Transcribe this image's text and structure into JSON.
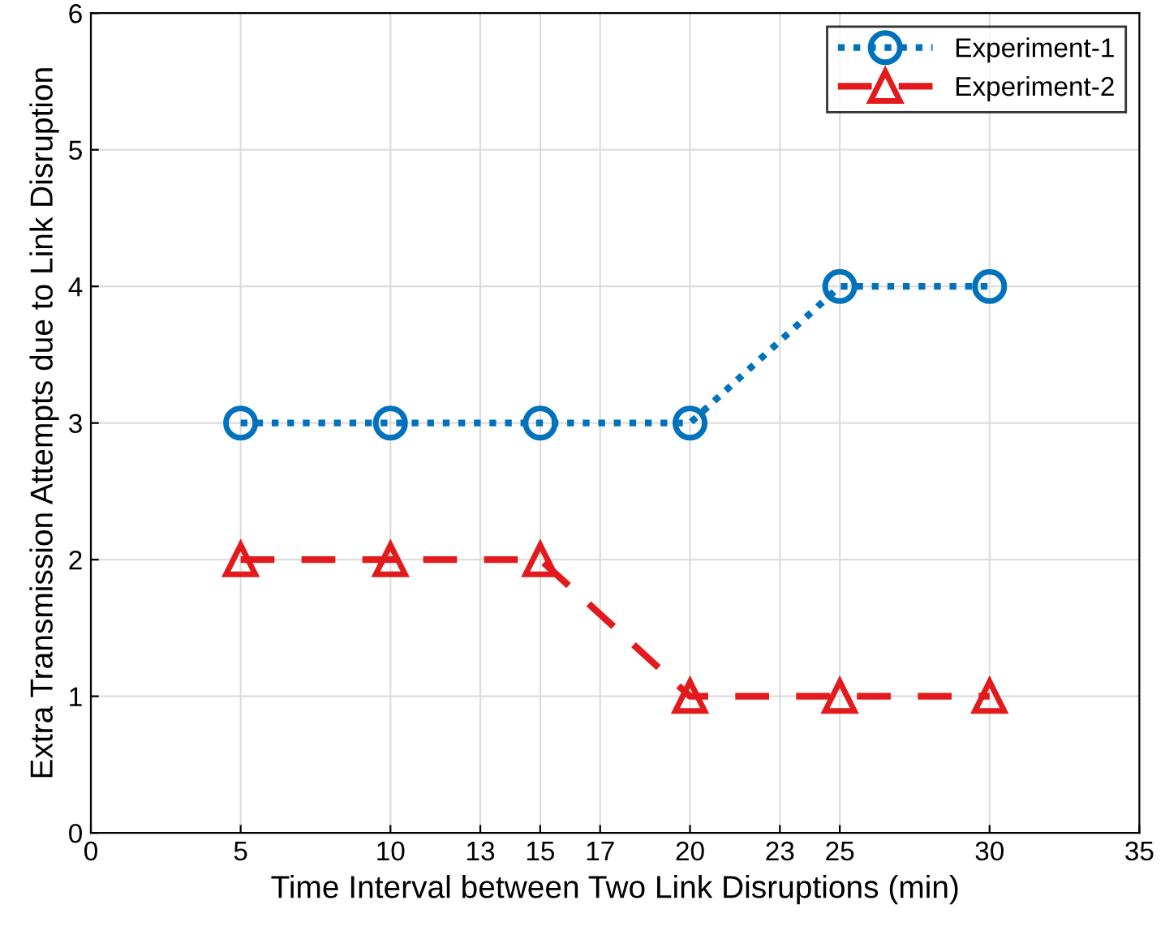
{
  "chart_data": {
    "type": "line",
    "xlabel": "Time Interval between Two Link Disruptions (min)",
    "ylabel": "Extra Transmission Attempts due to Link Disruption",
    "x": [
      5,
      10,
      15,
      20,
      25,
      30
    ],
    "series": [
      {
        "name": "Experiment-1",
        "color": "#0072bd",
        "values": [
          3,
          3,
          3,
          3,
          4,
          4
        ],
        "marker": "circle",
        "line_style": "dotted"
      },
      {
        "name": "Experiment-2",
        "color": "#e31a1c",
        "values": [
          2,
          2,
          2,
          1,
          1,
          1
        ],
        "marker": "triangle",
        "line_style": "dashed"
      }
    ],
    "xlim": [
      0,
      35
    ],
    "xticks": [
      0,
      5,
      10,
      13,
      15,
      17,
      20,
      23,
      25,
      30,
      35
    ],
    "ylim": [
      0,
      6
    ],
    "yticks": [
      0,
      1,
      2,
      3,
      4,
      5,
      6
    ],
    "grid": true,
    "legend": "top right"
  }
}
